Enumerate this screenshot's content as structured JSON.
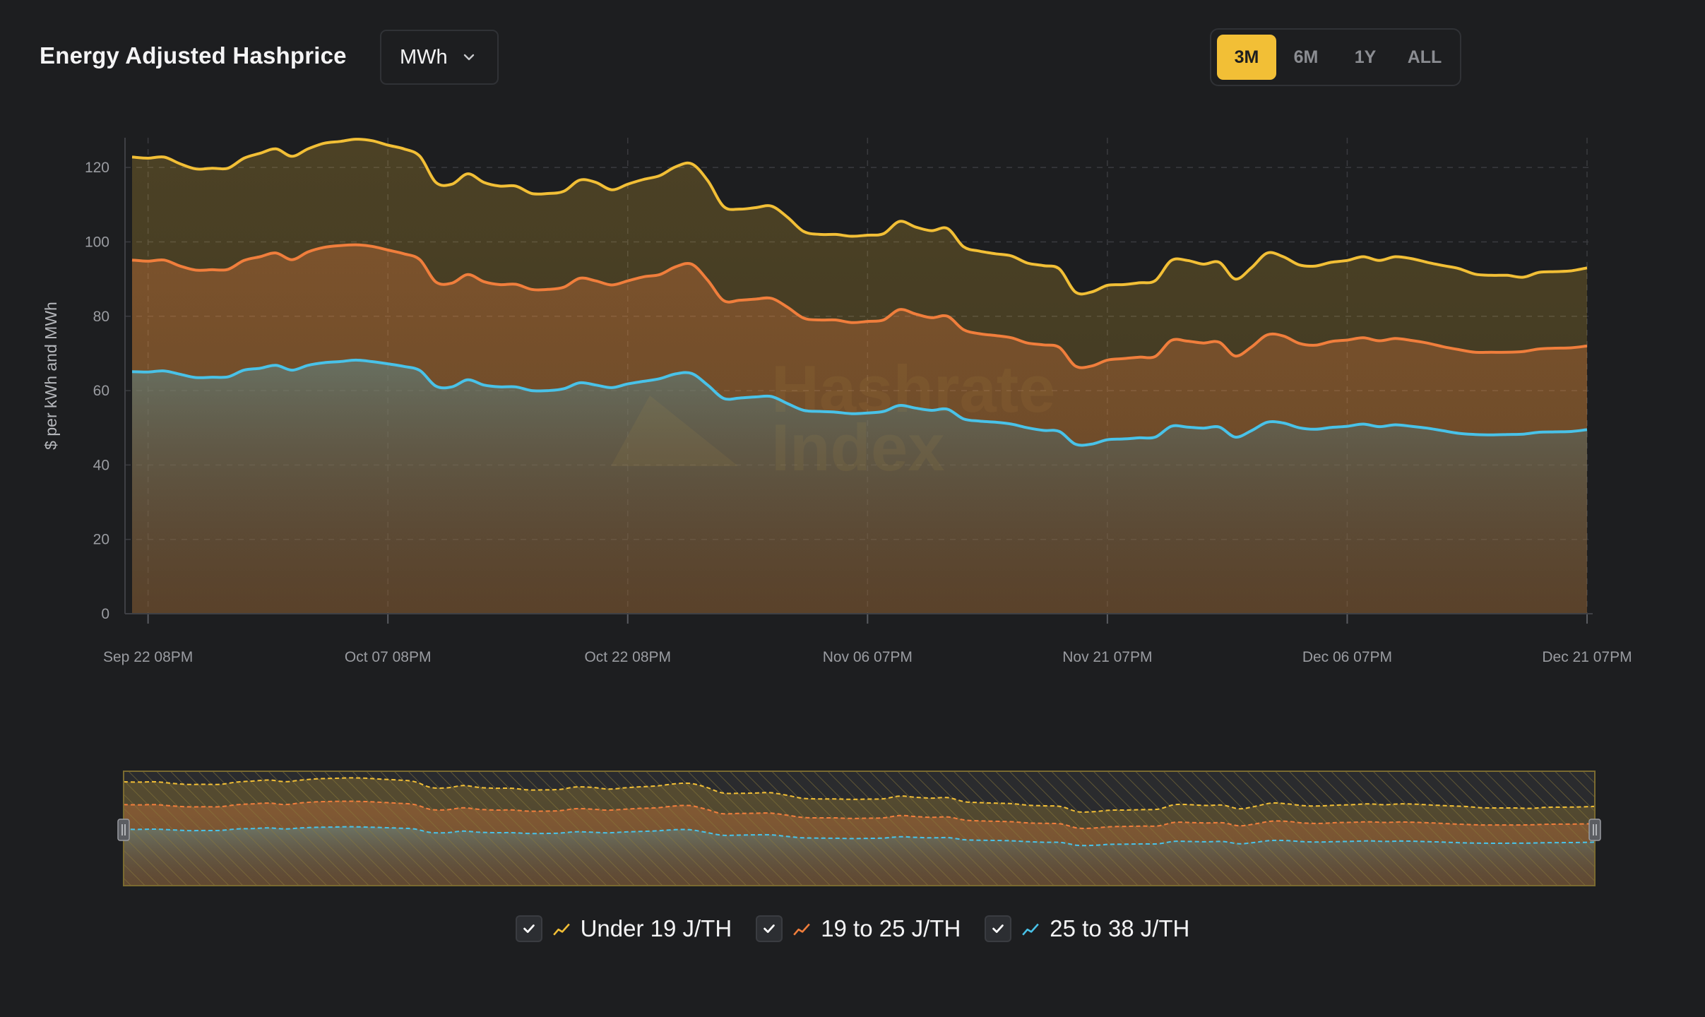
{
  "header": {
    "title": "Energy Adjusted Hashprice",
    "unit_select": "MWh",
    "ranges": [
      "3M",
      "6M",
      "1Y",
      "ALL"
    ],
    "active_range": "3M"
  },
  "watermark": "Hashrate Index",
  "chart_data": {
    "type": "area",
    "title": "Energy Adjusted Hashprice",
    "xlabel": "",
    "ylabel": "$ per kWh and MWh",
    "ylim": [
      0,
      128
    ],
    "y_ticks": [
      0,
      20,
      40,
      60,
      80,
      100,
      120
    ],
    "x_tick_labels": [
      "Sep 22 08PM",
      "Oct 07 08PM",
      "Oct 22 08PM",
      "Nov 06 07PM",
      "Nov 21 07PM",
      "Dec 06 07PM",
      "Dec 21 07PM"
    ],
    "x_tick_days": [
      1,
      16,
      31,
      46,
      61,
      76,
      91
    ],
    "x_range_days": [
      0,
      91
    ],
    "grid": true,
    "legend_position": "bottom",
    "series": [
      {
        "name": "Under 19 J/TH",
        "color": "#f2bf36",
        "x": [
          0,
          1,
          2,
          3,
          4,
          5,
          6,
          7,
          8,
          9,
          10,
          11,
          12,
          13,
          14,
          15,
          16,
          17,
          18,
          19,
          20,
          21,
          22,
          23,
          24,
          25,
          26,
          27,
          28,
          29,
          30,
          31,
          32,
          33,
          34,
          35,
          36,
          37,
          38,
          39,
          40,
          41,
          42,
          43,
          44,
          45,
          46,
          47,
          48,
          49,
          50,
          51,
          52,
          53,
          54,
          55,
          56,
          57,
          58,
          59,
          60,
          61,
          62,
          63,
          64,
          65,
          66,
          67,
          68,
          69,
          70,
          71,
          72,
          73,
          74,
          75,
          76,
          77,
          78,
          79,
          80,
          81,
          82,
          83,
          84,
          85,
          86,
          87,
          88,
          89,
          90,
          91
        ],
        "values": [
          122.8,
          122.5,
          122.8,
          121,
          119.6,
          119.8,
          119.8,
          122.5,
          123.8,
          125,
          123,
          125,
          126.5,
          127,
          127.6,
          127.2,
          126,
          125,
          123,
          116,
          115.5,
          118.3,
          116,
          115,
          115,
          113,
          113,
          113.6,
          116.6,
          116,
          114,
          115.5,
          116.8,
          117.8,
          120.2,
          121,
          116.5,
          109.5,
          108.8,
          109.2,
          109.6,
          106.6,
          102.8,
          102,
          102,
          101.5,
          101.8,
          102.2,
          105.5,
          104,
          103,
          103.6,
          98.7,
          97.5,
          96.8,
          96.2,
          94.3,
          93.6,
          92.7,
          86.5,
          86.5,
          88.3,
          88.5,
          89,
          89.6,
          95,
          95,
          94,
          94.5,
          90,
          93,
          97,
          96,
          93.8,
          93.5,
          94.5,
          95,
          96,
          95,
          96,
          95.5,
          94.5,
          93.6,
          92.8,
          91.3,
          91,
          91,
          90.5,
          91.8,
          92,
          92.2,
          93
        ]
      },
      {
        "name": "19 to 25 J/TH",
        "color": "#f07e3c",
        "x": [
          0,
          1,
          2,
          3,
          4,
          5,
          6,
          7,
          8,
          9,
          10,
          11,
          12,
          13,
          14,
          15,
          16,
          17,
          18,
          19,
          20,
          21,
          22,
          23,
          24,
          25,
          26,
          27,
          28,
          29,
          30,
          31,
          32,
          33,
          34,
          35,
          36,
          37,
          38,
          39,
          40,
          41,
          42,
          43,
          44,
          45,
          46,
          47,
          48,
          49,
          50,
          51,
          52,
          53,
          54,
          55,
          56,
          57,
          58,
          59,
          60,
          61,
          62,
          63,
          64,
          65,
          66,
          67,
          68,
          69,
          70,
          71,
          72,
          73,
          74,
          75,
          76,
          77,
          78,
          79,
          80,
          81,
          82,
          83,
          84,
          85,
          86,
          87,
          88,
          89,
          90,
          91
        ],
        "values": [
          95.1,
          94.8,
          95.1,
          93.5,
          92.4,
          92.5,
          92.6,
          95,
          96,
          97,
          95.2,
          97.3,
          98.5,
          99,
          99.2,
          98.8,
          97.8,
          96.8,
          95.2,
          89.2,
          88.9,
          91.2,
          89.3,
          88.5,
          88.6,
          87.2,
          87.2,
          87.8,
          90.2,
          89.5,
          88.4,
          89.5,
          90.6,
          91.2,
          93.3,
          94,
          89.7,
          84.2,
          84.3,
          84.6,
          84.8,
          82.4,
          79.5,
          79,
          79,
          78.3,
          78.6,
          79,
          81.8,
          80.6,
          79.6,
          80,
          76.4,
          75.3,
          74.8,
          74.2,
          72.8,
          72.3,
          71.6,
          66.6,
          66.6,
          68.2,
          68.6,
          69,
          69.2,
          73.5,
          73.3,
          72.8,
          73,
          69.3,
          71.7,
          75,
          74.7,
          72.7,
          72.2,
          73.2,
          73.6,
          74.2,
          73.4,
          74,
          73.5,
          72.8,
          71.8,
          71,
          70.3,
          70.3,
          70.3,
          70.5,
          71.2,
          71.4,
          71.5,
          72
        ]
      },
      {
        "name": "25 to 38 J/TH",
        "color": "#49c2e8",
        "x": [
          0,
          1,
          2,
          3,
          4,
          5,
          6,
          7,
          8,
          9,
          10,
          11,
          12,
          13,
          14,
          15,
          16,
          17,
          18,
          19,
          20,
          21,
          22,
          23,
          24,
          25,
          26,
          27,
          28,
          29,
          30,
          31,
          32,
          33,
          34,
          35,
          36,
          37,
          38,
          39,
          40,
          41,
          42,
          43,
          44,
          45,
          46,
          47,
          48,
          49,
          50,
          51,
          52,
          53,
          54,
          55,
          56,
          57,
          58,
          59,
          60,
          61,
          62,
          63,
          64,
          65,
          66,
          67,
          68,
          69,
          70,
          71,
          72,
          73,
          74,
          75,
          76,
          77,
          78,
          79,
          80,
          81,
          82,
          83,
          84,
          85,
          86,
          87,
          88,
          89,
          90,
          91
        ],
        "values": [
          65.1,
          65,
          65.3,
          64.4,
          63.5,
          63.6,
          63.7,
          65.5,
          66,
          66.8,
          65.5,
          66.8,
          67.5,
          67.8,
          68.2,
          67.8,
          67.2,
          66.5,
          65.4,
          61.2,
          61,
          62.9,
          61.5,
          61,
          61,
          60,
          60,
          60.5,
          62.1,
          61.5,
          60.8,
          61.8,
          62.5,
          63.2,
          64.5,
          64.6,
          61.5,
          57.9,
          58,
          58.3,
          58.4,
          56.5,
          54.7,
          54.4,
          54.2,
          53.8,
          54,
          54.4,
          56,
          55.3,
          54.7,
          55,
          52.4,
          51.8,
          51.5,
          51,
          50,
          49.3,
          49,
          45.6,
          45.6,
          46.8,
          47,
          47.3,
          47.5,
          50.4,
          50.2,
          49.9,
          50.2,
          47.5,
          49.2,
          51.5,
          51.3,
          50,
          49.6,
          50.1,
          50.4,
          51,
          50.3,
          50.8,
          50.4,
          49.9,
          49.2,
          48.5,
          48.2,
          48.1,
          48.2,
          48.3,
          48.8,
          48.9,
          49,
          49.5
        ]
      }
    ]
  },
  "y_axis_label": "$ per kWh and MWh"
}
